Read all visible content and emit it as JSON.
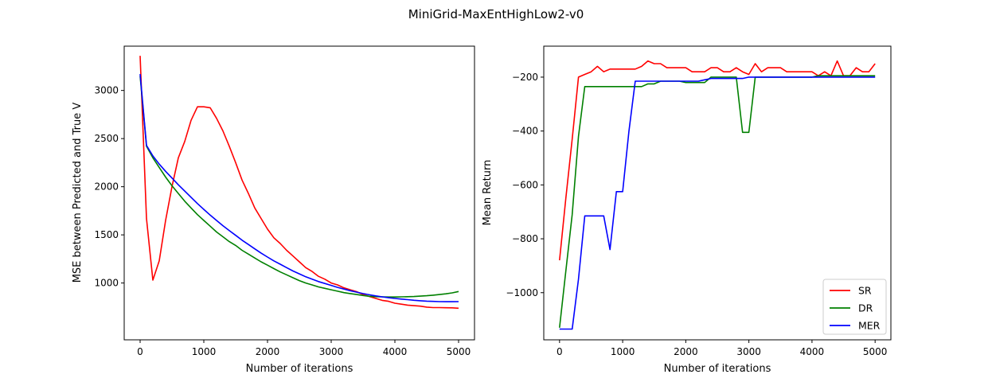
{
  "figure": {
    "title": "MiniGrid-MaxEntHighLow2-v0"
  },
  "chart_data": [
    {
      "type": "line",
      "xlabel": "Number of iterations",
      "ylabel": "MSE between Predicted and True V",
      "xlim": [
        -250,
        5250
      ],
      "ylim": [
        410,
        3460
      ],
      "xticks": [
        0,
        1000,
        2000,
        3000,
        4000,
        5000
      ],
      "yticks": [
        1000,
        1500,
        2000,
        2500,
        3000
      ],
      "grid": false,
      "legend": null,
      "x": [
        0,
        100,
        200,
        300,
        400,
        500,
        600,
        700,
        800,
        900,
        1000,
        1100,
        1200,
        1300,
        1400,
        1500,
        1600,
        1700,
        1800,
        1900,
        2000,
        2100,
        2200,
        2300,
        2400,
        2500,
        2600,
        2700,
        2800,
        2900,
        3000,
        3100,
        3200,
        3300,
        3400,
        3500,
        3600,
        3700,
        3800,
        3900,
        4000,
        4100,
        4200,
        4300,
        4400,
        4500,
        4600,
        4700,
        4800,
        4900,
        5000
      ],
      "series": [
        {
          "color": "#ff0000",
          "values": [
            3360,
            1670,
            1030,
            1230,
            1650,
            2000,
            2300,
            2470,
            2690,
            2830,
            2830,
            2820,
            2710,
            2580,
            2420,
            2250,
            2070,
            1930,
            1780,
            1670,
            1560,
            1470,
            1410,
            1340,
            1280,
            1220,
            1160,
            1120,
            1070,
            1040,
            1000,
            980,
            950,
            930,
            910,
            880,
            860,
            840,
            820,
            810,
            790,
            780,
            770,
            765,
            760,
            750,
            745,
            745,
            743,
            742,
            738
          ]
        },
        {
          "color": "#008000",
          "values": [
            3150,
            2420,
            2300,
            2200,
            2100,
            2010,
            1930,
            1850,
            1780,
            1710,
            1650,
            1590,
            1530,
            1480,
            1430,
            1390,
            1340,
            1300,
            1260,
            1220,
            1185,
            1150,
            1115,
            1085,
            1055,
            1025,
            1000,
            980,
            960,
            945,
            930,
            915,
            900,
            890,
            880,
            870,
            862,
            858,
            856,
            855,
            855,
            856,
            858,
            860,
            864,
            868,
            874,
            880,
            888,
            898,
            912
          ]
        },
        {
          "color": "#0000ff",
          "values": [
            3170,
            2430,
            2320,
            2235,
            2160,
            2090,
            2020,
            1955,
            1890,
            1825,
            1765,
            1705,
            1650,
            1595,
            1545,
            1495,
            1445,
            1400,
            1355,
            1310,
            1270,
            1230,
            1195,
            1160,
            1125,
            1095,
            1065,
            1040,
            1015,
            995,
            975,
            955,
            937,
            920,
            905,
            890,
            878,
            866,
            856,
            847,
            840,
            833,
            827,
            821,
            816,
            812,
            809,
            807,
            806,
            806,
            807
          ]
        }
      ]
    },
    {
      "type": "line",
      "xlabel": "Number of iterations",
      "ylabel": "Mean Return",
      "xlim": [
        -250,
        5250
      ],
      "ylim": [
        -1175,
        -85
      ],
      "xticks": [
        0,
        1000,
        2000,
        3000,
        4000,
        5000
      ],
      "yticks": [
        -1000,
        -800,
        -600,
        -400,
        -200
      ],
      "grid": false,
      "legend": "lower-right",
      "x": [
        0,
        100,
        200,
        300,
        400,
        500,
        600,
        700,
        800,
        900,
        1000,
        1100,
        1200,
        1300,
        1400,
        1500,
        1600,
        1700,
        1800,
        1900,
        2000,
        2100,
        2200,
        2300,
        2400,
        2500,
        2600,
        2700,
        2800,
        2900,
        3000,
        3100,
        3200,
        3300,
        3400,
        3500,
        3600,
        3700,
        3800,
        3900,
        4000,
        4100,
        4200,
        4300,
        4400,
        4500,
        4600,
        4700,
        4800,
        4900,
        5000
      ],
      "series": [
        {
          "name": "SR",
          "color": "#ff0000",
          "values": [
            -880,
            -650,
            -430,
            -200,
            -190,
            -180,
            -160,
            -180,
            -170,
            -170,
            -170,
            -170,
            -170,
            -160,
            -140,
            -150,
            -150,
            -165,
            -165,
            -165,
            -165,
            -180,
            -180,
            -180,
            -165,
            -165,
            -180,
            -180,
            -165,
            -180,
            -190,
            -150,
            -180,
            -165,
            -165,
            -165,
            -180,
            -180,
            -180,
            -180,
            -180,
            -195,
            -180,
            -195,
            -140,
            -195,
            -195,
            -165,
            -180,
            -180,
            -150
          ]
        },
        {
          "name": "DR",
          "color": "#008000",
          "values": [
            -1130,
            -920,
            -710,
            -420,
            -235,
            -235,
            -235,
            -235,
            -235,
            -235,
            -235,
            -235,
            -235,
            -235,
            -225,
            -225,
            -215,
            -215,
            -215,
            -215,
            -220,
            -220,
            -220,
            -220,
            -200,
            -200,
            -200,
            -200,
            -200,
            -405,
            -405,
            -200,
            -200,
            -200,
            -200,
            -200,
            -200,
            -200,
            -200,
            -200,
            -200,
            -195,
            -195,
            -195,
            -195,
            -195,
            -195,
            -195,
            -195,
            -195,
            -195
          ]
        },
        {
          "name": "MER",
          "color": "#0000ff",
          "values": [
            -1135,
            -1135,
            -1135,
            -950,
            -715,
            -715,
            -715,
            -715,
            -840,
            -625,
            -625,
            -400,
            -215,
            -215,
            -215,
            -215,
            -215,
            -215,
            -215,
            -215,
            -215,
            -215,
            -215,
            -210,
            -205,
            -205,
            -205,
            -205,
            -205,
            -205,
            -200,
            -200,
            -200,
            -200,
            -200,
            -200,
            -200,
            -200,
            -200,
            -200,
            -200,
            -200,
            -200,
            -200,
            -200,
            -200,
            -200,
            -200,
            -200,
            -200,
            -200
          ]
        }
      ]
    }
  ]
}
